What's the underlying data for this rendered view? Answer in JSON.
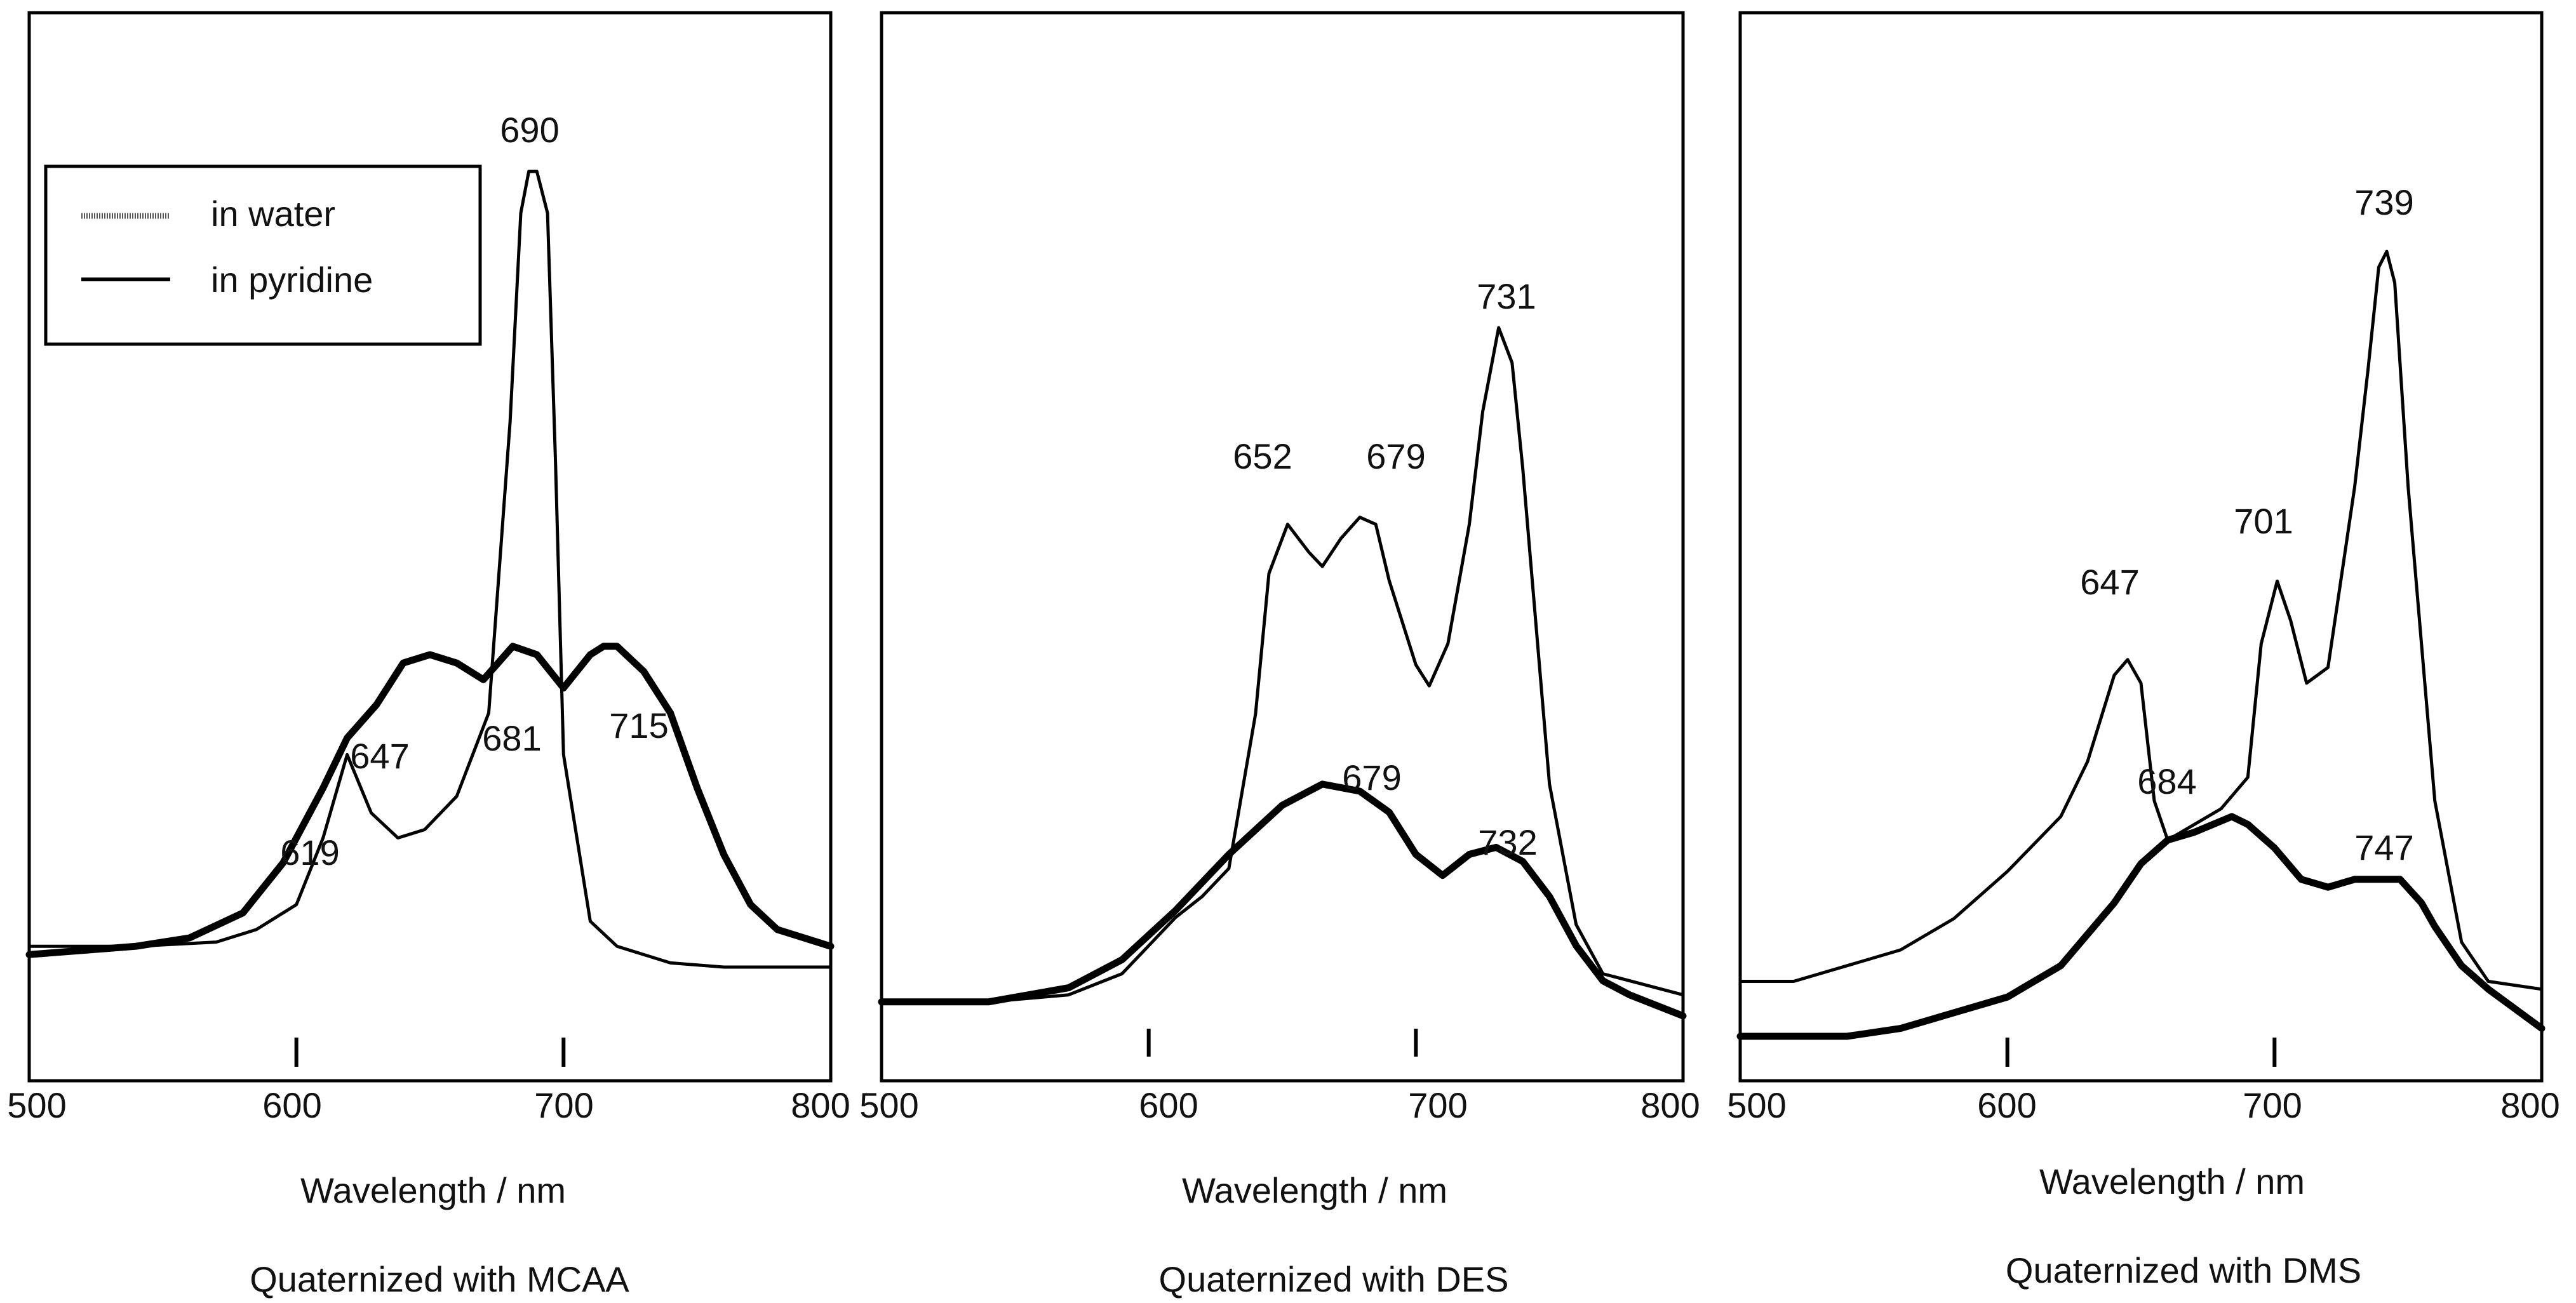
{
  "chart_data": [
    {
      "type": "line",
      "title": "Quaternized with MCAA",
      "xlabel": "Wavelength / nm",
      "ylabel": "",
      "xlim": [
        500,
        800
      ],
      "ylim": [
        0,
        1
      ],
      "x_ticks": [
        500,
        600,
        700,
        800
      ],
      "legend": {
        "position": "top-left",
        "entries": [
          {
            "name": "in water",
            "style": "dotted"
          },
          {
            "name": "in pyridine",
            "style": "solid"
          }
        ]
      },
      "series": [
        {
          "name": "in water",
          "x": [
            500,
            540,
            570,
            585,
            600,
            610,
            619,
            628,
            638,
            648,
            660,
            672,
            680,
            684,
            687,
            690,
            694,
            697,
            700,
            710,
            720,
            740,
            760,
            800
          ],
          "y": [
            0.07,
            0.07,
            0.075,
            0.09,
            0.12,
            0.2,
            0.3,
            0.23,
            0.2,
            0.21,
            0.25,
            0.35,
            0.7,
            0.95,
            1.0,
            1.0,
            0.95,
            0.65,
            0.3,
            0.1,
            0.07,
            0.05,
            0.045,
            0.045
          ]
        },
        {
          "name": "in pyridine",
          "x": [
            500,
            540,
            560,
            580,
            595,
            610,
            619,
            630,
            640,
            650,
            660,
            670,
            681,
            690,
            700,
            710,
            715,
            720,
            730,
            740,
            750,
            760,
            770,
            780,
            800
          ],
          "y": [
            0.06,
            0.07,
            0.08,
            0.11,
            0.17,
            0.26,
            0.32,
            0.36,
            0.41,
            0.42,
            0.41,
            0.39,
            0.43,
            0.42,
            0.38,
            0.42,
            0.43,
            0.43,
            0.4,
            0.35,
            0.26,
            0.18,
            0.12,
            0.09,
            0.07
          ]
        }
      ],
      "annotations": [
        "690",
        "619",
        "647",
        "681",
        "715"
      ]
    },
    {
      "type": "line",
      "title": "Quaternized with DES",
      "xlabel": "Wavelength / nm",
      "ylabel": "",
      "xlim": [
        500,
        800
      ],
      "ylim": [
        0,
        1
      ],
      "x_ticks": [
        500,
        600,
        700,
        800
      ],
      "series": [
        {
          "name": "in water",
          "x": [
            500,
            540,
            570,
            590,
            600,
            610,
            620,
            630,
            640,
            645,
            652,
            660,
            665,
            672,
            679,
            685,
            690,
            700,
            705,
            712,
            720,
            725,
            731,
            736,
            740,
            750,
            760,
            770,
            800
          ],
          "y": [
            0.04,
            0.04,
            0.05,
            0.08,
            0.12,
            0.16,
            0.19,
            0.23,
            0.45,
            0.65,
            0.72,
            0.68,
            0.66,
            0.7,
            0.73,
            0.72,
            0.64,
            0.52,
            0.49,
            0.55,
            0.72,
            0.88,
            1.0,
            0.95,
            0.8,
            0.35,
            0.15,
            0.08,
            0.05
          ]
        },
        {
          "name": "in pyridine",
          "x": [
            500,
            540,
            570,
            590,
            610,
            630,
            650,
            665,
            679,
            690,
            700,
            710,
            720,
            730,
            740,
            750,
            760,
            770,
            780,
            800
          ],
          "y": [
            0.04,
            0.04,
            0.06,
            0.1,
            0.17,
            0.25,
            0.32,
            0.35,
            0.34,
            0.31,
            0.25,
            0.22,
            0.25,
            0.26,
            0.24,
            0.19,
            0.12,
            0.07,
            0.05,
            0.02
          ]
        }
      ],
      "annotations": [
        "731",
        "652",
        "679",
        "679",
        "732"
      ]
    },
    {
      "type": "line",
      "title": "Quaternized with DMS",
      "xlabel": "Wavelength / nm",
      "ylabel": "",
      "xlim": [
        500,
        800
      ],
      "ylim": [
        0,
        1
      ],
      "x_ticks": [
        500,
        600,
        700,
        800
      ],
      "series": [
        {
          "name": "in water",
          "x": [
            500,
            520,
            540,
            560,
            580,
            600,
            620,
            630,
            640,
            645,
            650,
            655,
            660,
            670,
            680,
            690,
            695,
            701,
            706,
            712,
            720,
            730,
            735,
            739,
            742,
            745,
            750,
            760,
            770,
            780,
            800
          ],
          "y": [
            0.07,
            0.07,
            0.09,
            0.11,
            0.15,
            0.21,
            0.28,
            0.35,
            0.46,
            0.48,
            0.45,
            0.3,
            0.25,
            0.27,
            0.29,
            0.33,
            0.5,
            0.58,
            0.53,
            0.45,
            0.47,
            0.7,
            0.85,
            0.98,
            1.0,
            0.96,
            0.7,
            0.3,
            0.12,
            0.07,
            0.06
          ]
        },
        {
          "name": "in pyridine",
          "x": [
            500,
            520,
            540,
            560,
            580,
            600,
            620,
            640,
            650,
            660,
            670,
            684,
            690,
            700,
            710,
            720,
            730,
            747,
            755,
            760,
            770,
            780,
            800
          ],
          "y": [
            0.0,
            0.0,
            0.0,
            0.01,
            0.03,
            0.05,
            0.09,
            0.17,
            0.22,
            0.25,
            0.26,
            0.28,
            0.27,
            0.24,
            0.2,
            0.19,
            0.2,
            0.2,
            0.17,
            0.14,
            0.09,
            0.06,
            0.01
          ]
        }
      ],
      "annotations": [
        "739",
        "701",
        "647",
        "684",
        "747"
      ]
    }
  ]
}
